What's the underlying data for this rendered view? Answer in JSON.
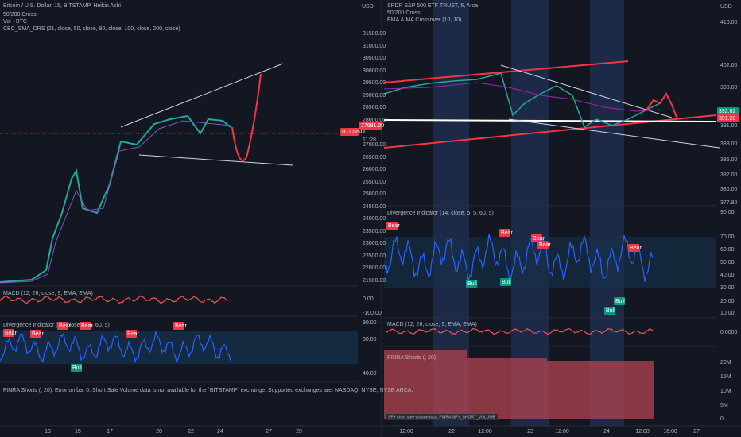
{
  "left": {
    "title": "Bitcoin / U.S. Dollar, 15, BITSTAMP, Heikin Ashi",
    "indicators": [
      "50/200 Cross",
      "Vol · BTC",
      "CBC_SMA_DRS (21, close, 50, close, 80, close, 100, close, 200, close)"
    ],
    "currency": "USD",
    "price_axis": [
      "31500.00",
      "31000.00",
      "30500.00",
      "30000.00",
      "29500.00",
      "29000.00",
      "28500.00",
      "28000.00",
      "27000.00",
      "26500.00",
      "26000.00",
      "25500.00",
      "25000.00",
      "24500.00",
      "24000.00",
      "23500.00",
      "23000.00",
      "22500.00",
      "22000.00",
      "21500.00"
    ],
    "price_tag": {
      "symbol": "BTCUSD",
      "price": "27681.00",
      "timer": "11:28"
    },
    "macd": {
      "title": "MACD (12, 26, close, 9, EMA, EMA)",
      "axis": [
        "0.00",
        "-100.00"
      ]
    },
    "divergence": {
      "title": "Divergence Indicator (14, close, 5, 5, 60, 5)",
      "axis": [
        "80.00",
        "60.00",
        "40.00"
      ],
      "signals": [
        "Bear",
        "Bear",
        "Bear",
        "Bear",
        "Bear",
        "Bear",
        "Bull"
      ]
    },
    "finra_error": "FINRA Shorts (, 20): Error on bar 0: Short Sale Volume data is not available for the `BITSTAMP` exchange. Supported exchanges are: NASDAQ, NYSE, NYSE ARCA.",
    "time_axis": [
      "13",
      "15",
      "17",
      "20",
      "22",
      "24",
      "27",
      "29"
    ]
  },
  "right": {
    "title": "SPDR S&P 500 ETF TRUST, 5, Arca",
    "indicators": [
      "50/200 Cross",
      "EMA & MA Crossover (10, 10)"
    ],
    "currency": "USD",
    "price_axis": [
      "410.00",
      "402.00",
      "398.00",
      "391.00",
      "388.00",
      "385.00",
      "382.00",
      "380.00",
      "377.80"
    ],
    "price_tags": [
      "392.62",
      "391.28"
    ],
    "divergence": {
      "title": "Divergence Indicator (14, close, 5, 5, 60, 5)",
      "axis": [
        "90.00",
        "70.00",
        "60.00",
        "50.00",
        "40.00",
        "30.00",
        "20.00",
        "10.00"
      ],
      "signals": [
        "Bear",
        "Bear",
        "Bear",
        "Bear",
        "Bear",
        "Bull",
        "Bull",
        "Bull",
        "Bull"
      ]
    },
    "macd": {
      "title": "MACD (12, 26, close, 9, EMA, EMA)",
      "axis": [
        "0.0000"
      ]
    },
    "finra": {
      "title": "FINRA Shorts (, 20)",
      "axis": [
        "20M",
        "15M",
        "10M",
        "5M",
        "0"
      ],
      "note": "SPY short sale volume data: FINRA:SPY_SHORT_VOLUME"
    },
    "time_axis": [
      "12:00",
      "22",
      "12:00",
      "23",
      "12:00",
      "24",
      "12:00",
      "16:00",
      "27"
    ]
  }
}
